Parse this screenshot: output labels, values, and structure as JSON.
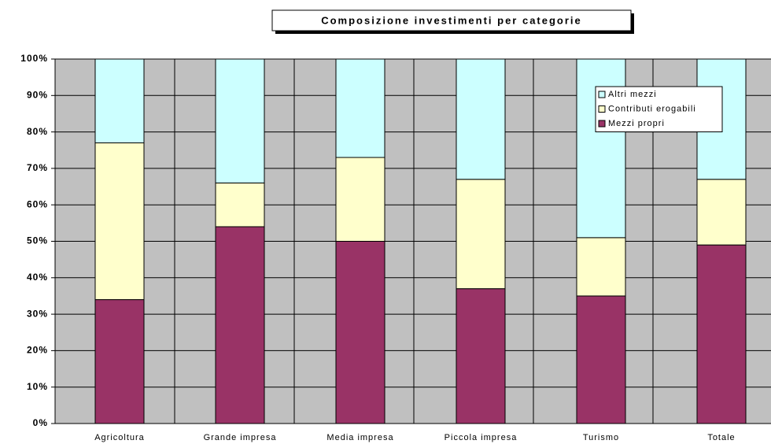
{
  "chart_data": {
    "type": "stacked_bar",
    "title": "Composizione investimenti per categorie",
    "categories": [
      "Agricoltura",
      "Grande impresa",
      "Media impresa",
      "Piccola impresa",
      "Turismo",
      "Totale"
    ],
    "series": [
      {
        "name": "Mezzi propri",
        "color": "#993366",
        "values": [
          34,
          54,
          50,
          37,
          35,
          49
        ]
      },
      {
        "name": "Contributi erogabili",
        "color": "#ffffcc",
        "values": [
          43,
          12,
          23,
          30,
          16,
          18
        ]
      },
      {
        "name": "Altri mezzi",
        "color": "#ccffff",
        "values": [
          23,
          34,
          27,
          33,
          49,
          33
        ]
      }
    ],
    "ylim": [
      0,
      100
    ],
    "yticks": [
      {
        "value": 0,
        "label": "0%"
      },
      {
        "value": 10,
        "label": "10%"
      },
      {
        "value": 20,
        "label": "20%"
      },
      {
        "value": 30,
        "label": "30%"
      },
      {
        "value": 40,
        "label": "40%"
      },
      {
        "value": 50,
        "label": "50%"
      },
      {
        "value": 60,
        "label": "60%"
      },
      {
        "value": 70,
        "label": "70%"
      },
      {
        "value": 80,
        "label": "80%"
      },
      {
        "value": 90,
        "label": "90%"
      },
      {
        "value": 100,
        "label": "100%"
      }
    ],
    "grid": true,
    "legend": "upper right"
  }
}
